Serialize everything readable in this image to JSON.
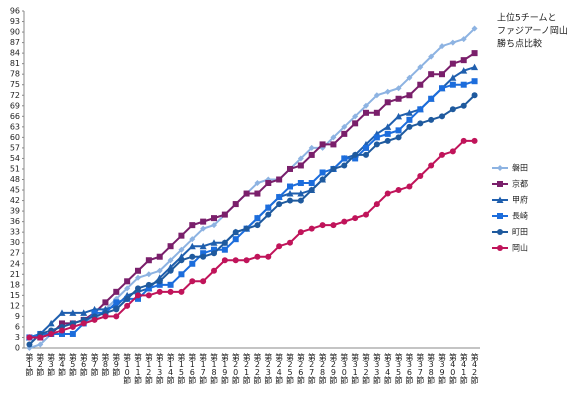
{
  "chart_data": {
    "type": "line",
    "title": [
      "上位5チームと",
      "ファジアーノ岡山",
      "勝ち点比較"
    ],
    "categories": [
      "第1節",
      "第2節",
      "第3節",
      "第4節",
      "第5節",
      "第6節",
      "第7節",
      "第8節",
      "第9節",
      "第10節",
      "第11節",
      "第12節",
      "第13節",
      "第14節",
      "第15節",
      "第16節",
      "第17節",
      "第18節",
      "第19節",
      "第20節",
      "第21節",
      "第22節",
      "第23節",
      "第24節",
      "第25節",
      "第26節",
      "第27節",
      "第28節",
      "第29節",
      "第30節",
      "第31節",
      "第32節",
      "第33節",
      "第34節",
      "第35節",
      "第36節",
      "第37節",
      "第38節",
      "第39節",
      "第40節",
      "第41節",
      "第42節"
    ],
    "series": [
      {
        "name": "磐田",
        "color": "#8db3e2",
        "marker": "diamond",
        "values": [
          0,
          1,
          4,
          7,
          7,
          8,
          8,
          11,
          14,
          17,
          20,
          21,
          22,
          25,
          28,
          31,
          34,
          35,
          38,
          41,
          44,
          47,
          48,
          48,
          51,
          54,
          57,
          57,
          60,
          63,
          66,
          69,
          72,
          73,
          74,
          77,
          80,
          83,
          86,
          87,
          88,
          91
        ]
      },
      {
        "name": "京都",
        "color": "#7a1f6b",
        "marker": "square",
        "values": [
          3,
          3,
          4,
          7,
          7,
          8,
          10,
          13,
          16,
          19,
          22,
          25,
          26,
          29,
          32,
          35,
          36,
          37,
          38,
          41,
          44,
          44,
          47,
          48,
          51,
          52,
          55,
          58,
          58,
          61,
          64,
          67,
          67,
          70,
          71,
          72,
          75,
          78,
          78,
          81,
          82,
          84
        ]
      },
      {
        "name": "甲府",
        "color": "#1f5fae",
        "marker": "triangle",
        "values": [
          3,
          4,
          7,
          10,
          10,
          10,
          11,
          11,
          12,
          15,
          16,
          17,
          20,
          23,
          26,
          29,
          29,
          30,
          30,
          33,
          34,
          37,
          40,
          43,
          44,
          44,
          45,
          48,
          51,
          54,
          55,
          58,
          61,
          63,
          66,
          67,
          68,
          71,
          74,
          77,
          79,
          80
        ]
      },
      {
        "name": "長崎",
        "color": "#1c6ddc",
        "marker": "square",
        "values": [
          3,
          4,
          4,
          4,
          4,
          7,
          10,
          10,
          13,
          14,
          14,
          17,
          18,
          18,
          21,
          24,
          27,
          28,
          28,
          31,
          34,
          37,
          40,
          43,
          46,
          47,
          47,
          50,
          51,
          54,
          54,
          57,
          60,
          61,
          62,
          65,
          68,
          71,
          74,
          75,
          75,
          76
        ]
      },
      {
        "name": "町田",
        "color": "#1f5a9e",
        "marker": "circle",
        "values": [
          1,
          4,
          5,
          6,
          7,
          8,
          9,
          10,
          11,
          14,
          17,
          18,
          19,
          22,
          25,
          26,
          26,
          27,
          30,
          33,
          34,
          35,
          38,
          41,
          42,
          42,
          45,
          48,
          51,
          52,
          55,
          55,
          58,
          59,
          60,
          63,
          64,
          65,
          66,
          68,
          69,
          72
        ]
      },
      {
        "name": "岡山",
        "color": "#c0145a",
        "marker": "circle",
        "values": [
          3,
          3,
          4,
          5,
          6,
          7,
          8,
          9,
          9,
          12,
          15,
          15,
          16,
          16,
          16,
          19,
          19,
          22,
          25,
          25,
          25,
          26,
          26,
          29,
          30,
          33,
          34,
          35,
          35,
          36,
          37,
          38,
          41,
          44,
          45,
          46,
          49,
          52,
          55,
          56,
          59,
          59
        ]
      }
    ],
    "ylim": [
      0,
      96
    ],
    "yticks": [
      0,
      3,
      6,
      9,
      12,
      15,
      18,
      21,
      24,
      27,
      30,
      33,
      36,
      39,
      42,
      45,
      48,
      51,
      54,
      57,
      60,
      63,
      66,
      69,
      72,
      75,
      78,
      81,
      84,
      87,
      90,
      93,
      96
    ],
    "grid": false,
    "legend": "right"
  }
}
